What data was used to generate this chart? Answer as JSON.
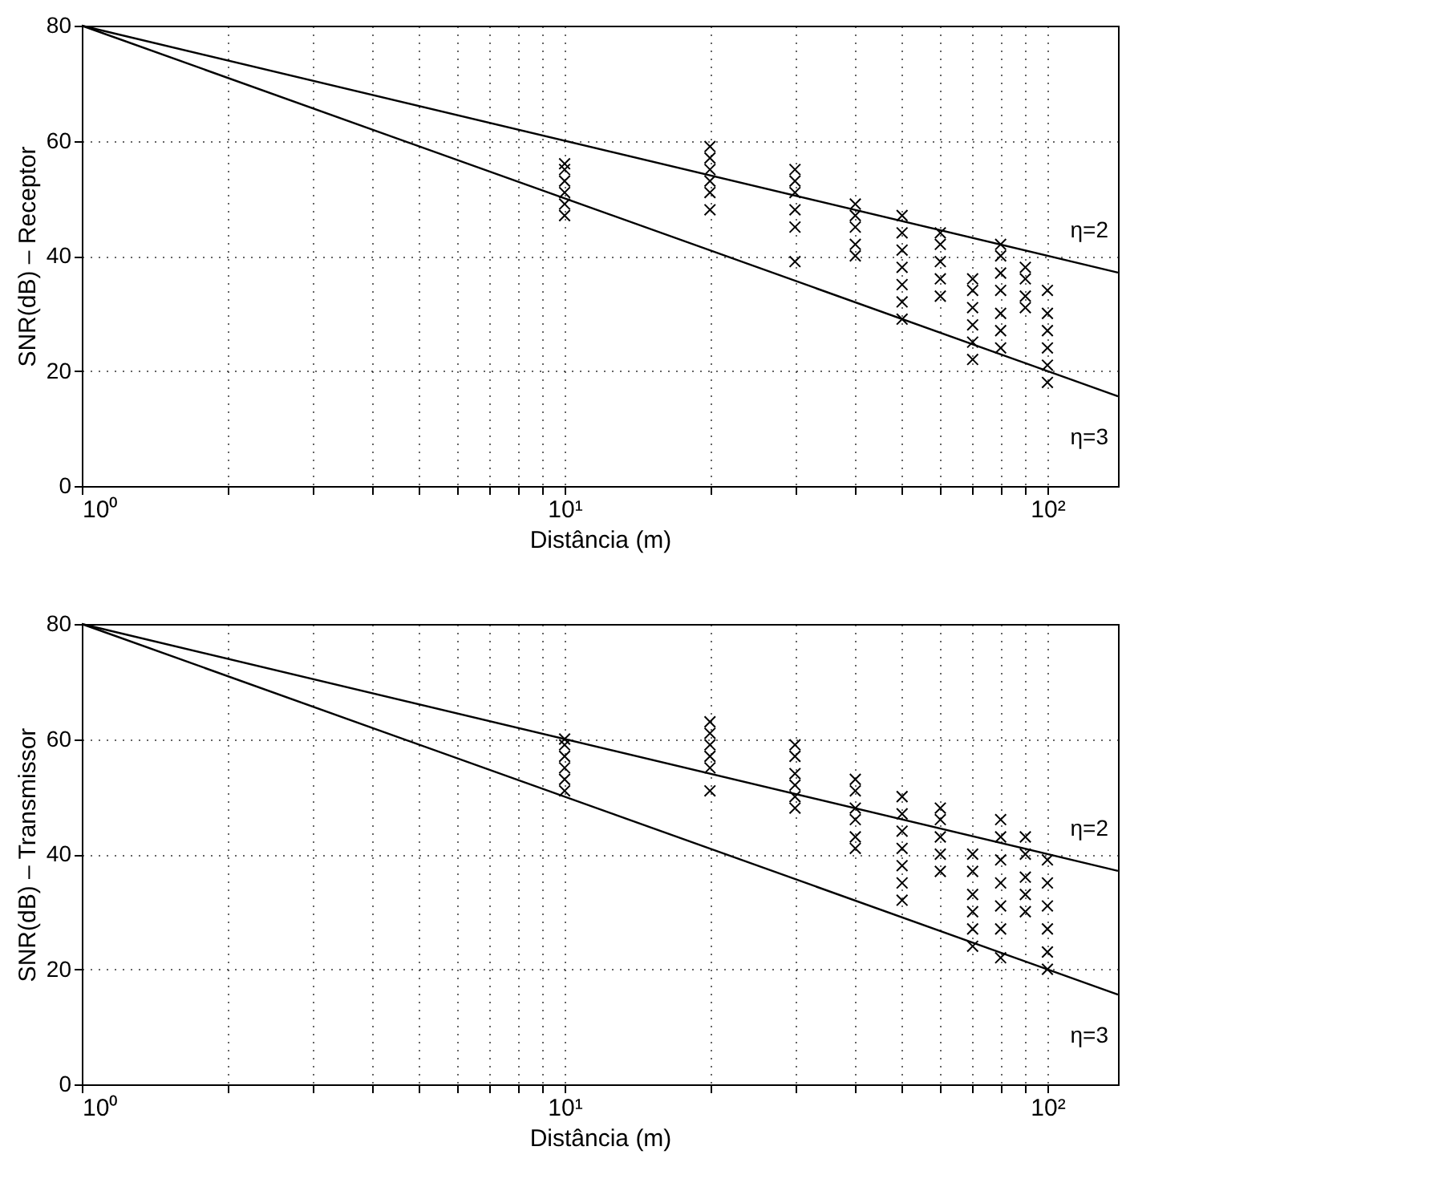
{
  "chart_data": [
    {
      "type": "scatter",
      "xlabel": "Distância (m)",
      "ylabel": "SNR(dB) – Receptor",
      "log": "x",
      "grid": true,
      "xlim": [
        1,
        140
      ],
      "ylim": [
        0,
        80
      ],
      "xticks": [
        {
          "value": 1,
          "label": "10⁰"
        },
        {
          "value": 2,
          "label": null
        },
        {
          "value": 3,
          "label": null
        },
        {
          "value": 4,
          "label": null
        },
        {
          "value": 5,
          "label": null
        },
        {
          "value": 6,
          "label": null
        },
        {
          "value": 7,
          "label": null
        },
        {
          "value": 8,
          "label": null
        },
        {
          "value": 9,
          "label": null
        },
        {
          "value": 10,
          "label": "10¹"
        },
        {
          "value": 20,
          "label": null
        },
        {
          "value": 30,
          "label": null
        },
        {
          "value": 40,
          "label": null
        },
        {
          "value": 50,
          "label": null
        },
        {
          "value": 60,
          "label": null
        },
        {
          "value": 70,
          "label": null
        },
        {
          "value": 80,
          "label": null
        },
        {
          "value": 90,
          "label": null
        },
        {
          "value": 100,
          "label": "10²"
        }
      ],
      "yticks": [
        0,
        20,
        40,
        60,
        80
      ],
      "series": [
        {
          "marker": "cross",
          "color": "#000000",
          "x": [
            10,
            10,
            10,
            10,
            10,
            10,
            20,
            20,
            20,
            20,
            20,
            20,
            30,
            30,
            30,
            30,
            30,
            30,
            40,
            40,
            40,
            40,
            40,
            50,
            50,
            50,
            50,
            50,
            50,
            50,
            60,
            60,
            60,
            60,
            60,
            70,
            70,
            70,
            70,
            70,
            70,
            80,
            80,
            80,
            80,
            80,
            80,
            80,
            90,
            90,
            90,
            90,
            100,
            100,
            100,
            100,
            100,
            100
          ],
          "values": [
            47,
            49,
            51,
            53,
            55,
            56,
            48,
            51,
            53,
            55,
            57,
            59,
            39,
            45,
            48,
            51,
            53,
            55,
            40,
            42,
            45,
            47,
            49,
            29,
            32,
            35,
            38,
            41,
            44,
            47,
            33,
            36,
            39,
            42,
            44,
            22,
            25,
            28,
            31,
            34,
            36,
            24,
            27,
            30,
            34,
            37,
            40,
            42,
            31,
            33,
            36,
            38,
            18,
            21,
            24,
            27,
            30,
            34
          ]
        },
        {
          "type": "line",
          "color": "#000000",
          "x": [
            1,
            140
          ],
          "values": [
            80,
            37.1
          ]
        },
        {
          "type": "line",
          "color": "#000000",
          "x": [
            1,
            140
          ],
          "values": [
            80,
            15.6
          ]
        }
      ],
      "annotations": [
        "η=2",
        "η=3"
      ]
    },
    {
      "type": "scatter",
      "xlabel": "Distância (m)",
      "ylabel": "SNR(dB) – Transmissor",
      "log": "x",
      "grid": true,
      "xlim": [
        1,
        140
      ],
      "ylim": [
        0,
        80
      ],
      "xticks": [
        {
          "value": 1,
          "label": "10⁰"
        },
        {
          "value": 2,
          "label": null
        },
        {
          "value": 3,
          "label": null
        },
        {
          "value": 4,
          "label": null
        },
        {
          "value": 5,
          "label": null
        },
        {
          "value": 6,
          "label": null
        },
        {
          "value": 7,
          "label": null
        },
        {
          "value": 8,
          "label": null
        },
        {
          "value": 9,
          "label": null
        },
        {
          "value": 10,
          "label": "10¹"
        },
        {
          "value": 20,
          "label": null
        },
        {
          "value": 30,
          "label": null
        },
        {
          "value": 40,
          "label": null
        },
        {
          "value": 50,
          "label": null
        },
        {
          "value": 60,
          "label": null
        },
        {
          "value": 70,
          "label": null
        },
        {
          "value": 80,
          "label": null
        },
        {
          "value": 90,
          "label": null
        },
        {
          "value": 100,
          "label": "10²"
        }
      ],
      "yticks": [
        0,
        20,
        40,
        60,
        80
      ],
      "series": [
        {
          "marker": "cross",
          "color": "#000000",
          "x": [
            10,
            10,
            10,
            10,
            10,
            10,
            20,
            20,
            20,
            20,
            20,
            20,
            30,
            30,
            30,
            30,
            30,
            30,
            40,
            40,
            40,
            40,
            40,
            40,
            50,
            50,
            50,
            50,
            50,
            50,
            50,
            60,
            60,
            60,
            60,
            60,
            70,
            70,
            70,
            70,
            70,
            70,
            80,
            80,
            80,
            80,
            80,
            80,
            80,
            90,
            90,
            90,
            90,
            90,
            100,
            100,
            100,
            100,
            100,
            100
          ],
          "values": [
            51,
            53,
            55,
            57,
            59,
            60,
            51,
            55,
            57,
            59,
            61,
            63,
            48,
            50,
            52,
            54,
            57,
            59,
            41,
            43,
            46,
            48,
            51,
            53,
            32,
            35,
            38,
            41,
            44,
            47,
            50,
            37,
            40,
            43,
            46,
            48,
            24,
            27,
            30,
            33,
            37,
            40,
            22,
            27,
            31,
            35,
            39,
            43,
            46,
            30,
            33,
            36,
            40,
            43,
            20,
            23,
            27,
            31,
            35,
            39
          ]
        },
        {
          "type": "line",
          "color": "#000000",
          "x": [
            1,
            140
          ],
          "values": [
            80,
            37.1
          ]
        },
        {
          "type": "line",
          "color": "#000000",
          "x": [
            1,
            140
          ],
          "values": [
            80,
            15.6
          ]
        }
      ],
      "annotations": [
        "η=2",
        "η=3"
      ]
    }
  ]
}
